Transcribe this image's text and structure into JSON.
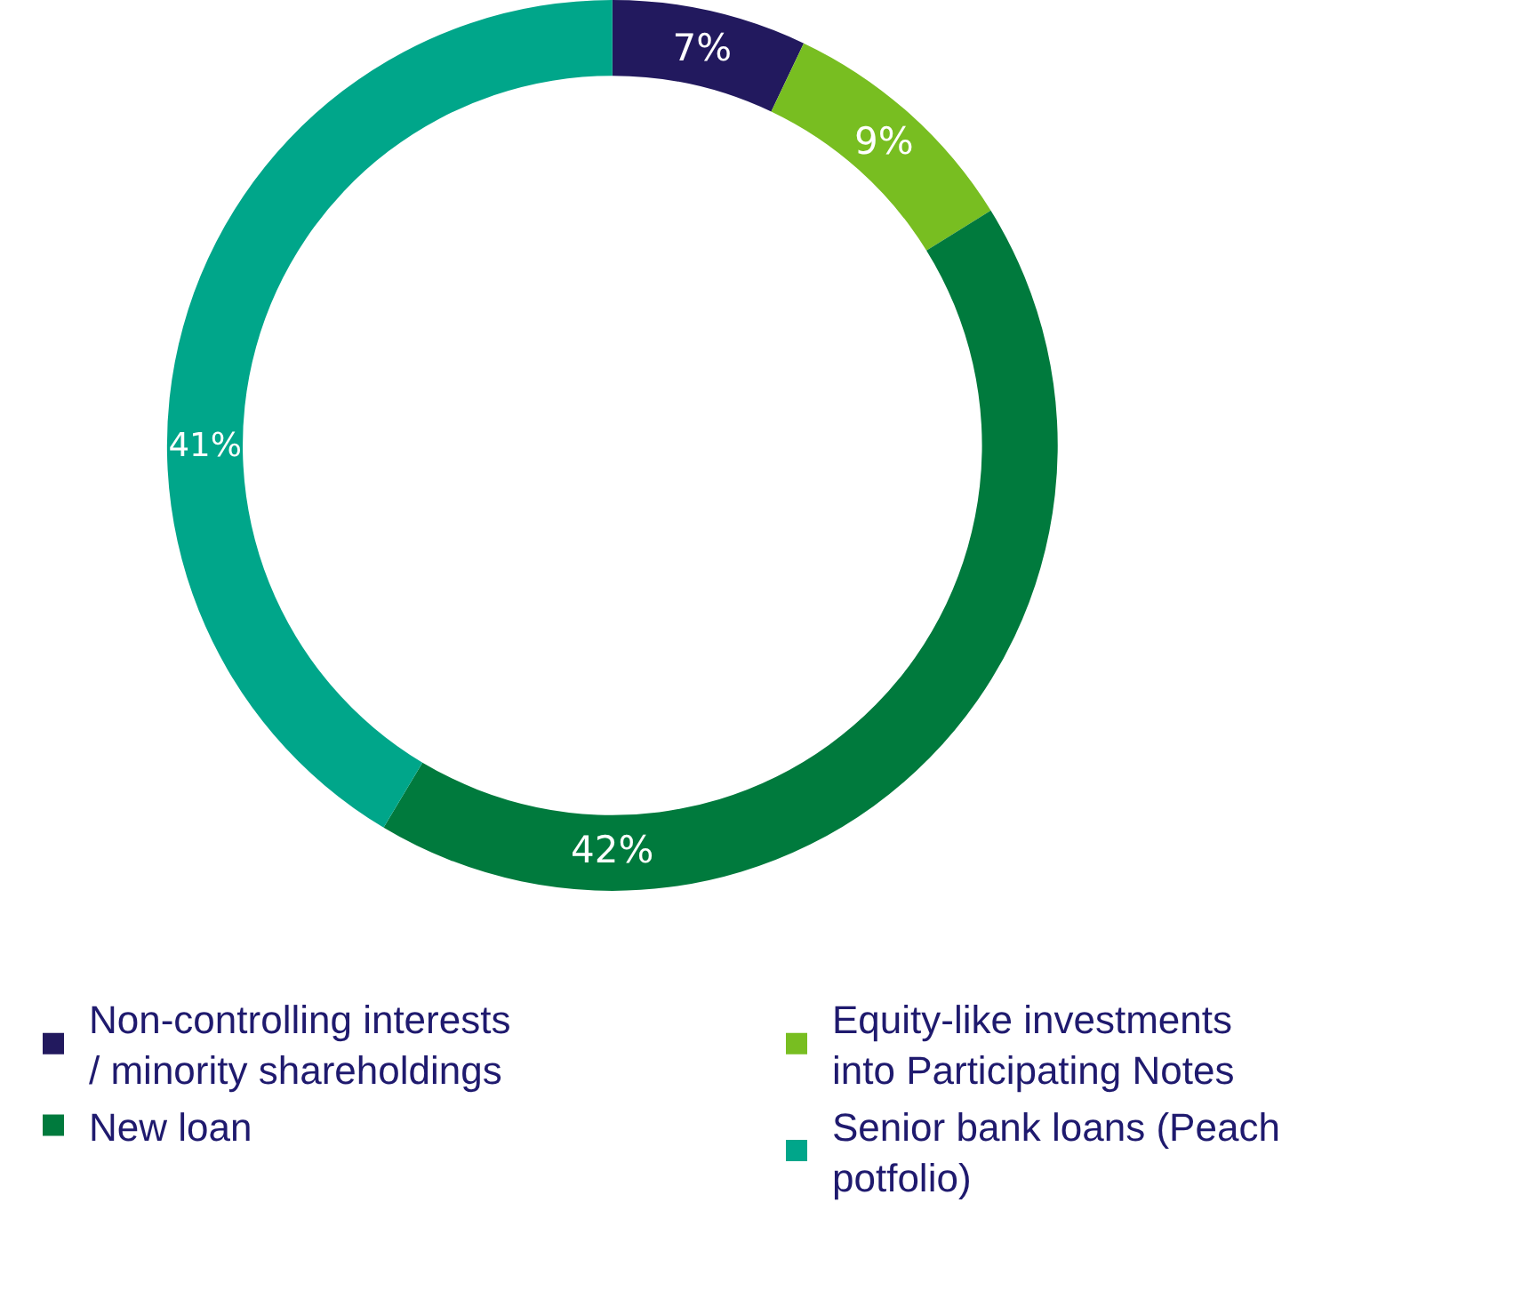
{
  "chart_data": {
    "type": "donut",
    "categories": [
      "Non-controlling interests / minority shareholdings",
      "Equity-like investments into Participating Notes",
      "New loan",
      "Senior bank loans (Peach potfolio)"
    ],
    "values": [
      7,
      9,
      42,
      41
    ],
    "value_labels": [
      "7%",
      "9%",
      "42%",
      "41%"
    ],
    "colors": [
      "#22195e",
      "#78be21",
      "#007a3d",
      "#00a68a"
    ],
    "legend": "bottom"
  }
}
